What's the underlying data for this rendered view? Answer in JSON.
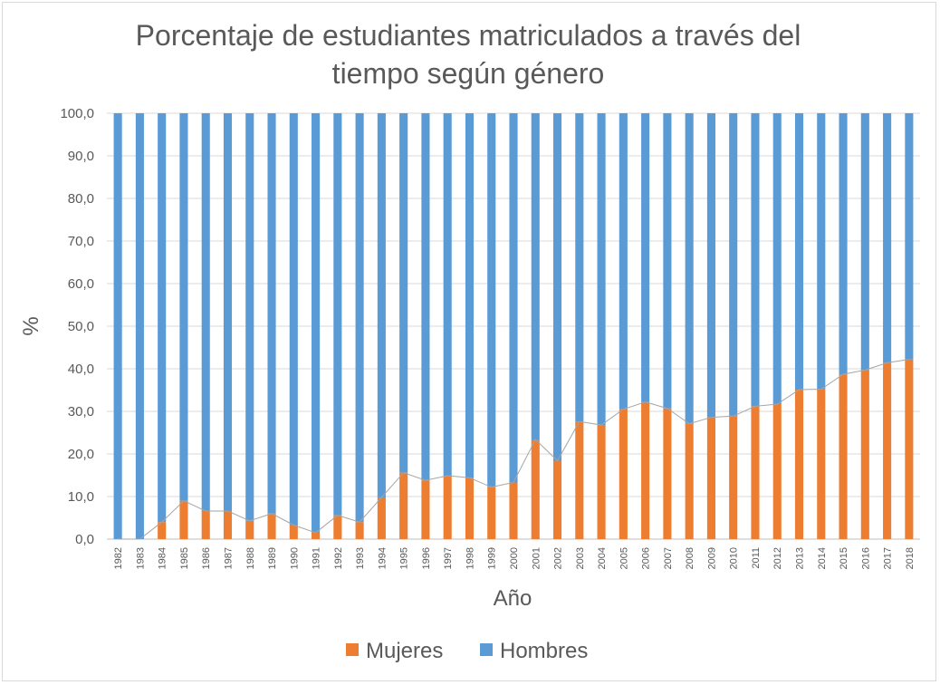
{
  "chart_data": {
    "type": "bar",
    "stacked": true,
    "title": "Porcentaje de estudiantes matriculados a través del tiempo según género",
    "xlabel": "Año",
    "ylabel": "%",
    "ylim": [
      0,
      100
    ],
    "yticks": [
      "0,0",
      "10,0",
      "20,0",
      "30,0",
      "40,0",
      "50,0",
      "60,0",
      "70,0",
      "80,0",
      "90,0",
      "100,0"
    ],
    "grid": true,
    "legend_position": "bottom",
    "categories": [
      "1982",
      "1983",
      "1984",
      "1985",
      "1986",
      "1987",
      "1988",
      "1989",
      "1990",
      "1991",
      "1992",
      "1993",
      "1994",
      "1995",
      "1996",
      "1997",
      "1998",
      "1999",
      "2000",
      "2001",
      "2002",
      "2003",
      "2004",
      "2005",
      "2006",
      "2007",
      "2008",
      "2009",
      "2010",
      "2011",
      "2012",
      "2013",
      "2014",
      "2015",
      "2016",
      "2017",
      "2018"
    ],
    "series": [
      {
        "name": "Mujeres",
        "color": "#ed7d31",
        "values": [
          0,
          0,
          4,
          9,
          6.6,
          6.6,
          4.3,
          6,
          3.3,
          1.5,
          5.6,
          4,
          9.8,
          15.6,
          13.8,
          14.9,
          14.4,
          12.2,
          13.3,
          23.4,
          18.4,
          27.6,
          26.8,
          30.5,
          32.2,
          30.7,
          27.1,
          28.6,
          28.9,
          31.2,
          31.7,
          35.1,
          35.2,
          38.7,
          39.7,
          41.4,
          42.2
        ]
      },
      {
        "name": "Hombres",
        "color": "#5b9bd5",
        "values": [
          100,
          100,
          96,
          91,
          93.4,
          93.4,
          95.7,
          94,
          96.7,
          98.5,
          94.4,
          96,
          90.2,
          84.4,
          86.2,
          85.1,
          85.6,
          87.8,
          86.7,
          76.6,
          81.6,
          72.4,
          73.2,
          69.5,
          67.8,
          69.3,
          72.9,
          71.4,
          71.1,
          68.8,
          68.3,
          64.9,
          64.8,
          61.3,
          60.3,
          58.6,
          57.8
        ]
      }
    ],
    "trend_line": {
      "color": "#a5a5a5"
    }
  }
}
